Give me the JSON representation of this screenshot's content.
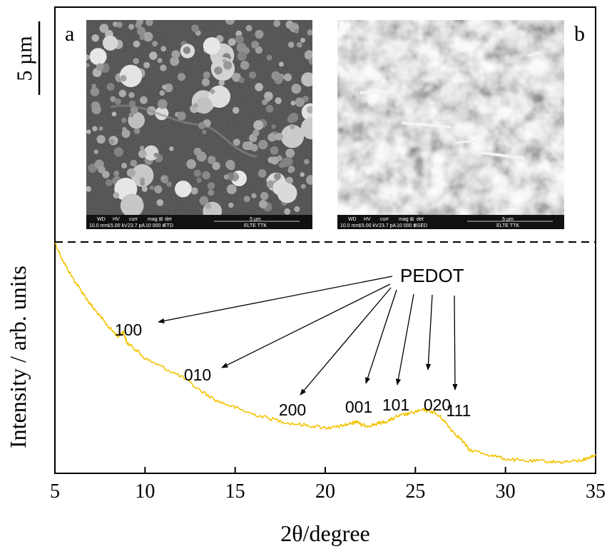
{
  "panels": {
    "a": "a",
    "b": "b"
  },
  "scale_bar_label": "5 µm",
  "sem_info": {
    "a": {
      "headers": [
        "WD",
        "HV",
        "curr",
        "mag ⊞",
        "det"
      ],
      "values": [
        "10.0 mm",
        "15.00 kV",
        "23.7 pA",
        "10 000 x",
        "ETD"
      ],
      "scale": "5 µm",
      "org": "ELTE TTK"
    },
    "b": {
      "headers": [
        "WD",
        "HV",
        "curr",
        "mag ⊞",
        "det"
      ],
      "values": [
        "10.0 mm",
        "15.00 kV",
        "23.7 pA",
        "10 000 x",
        "BSED"
      ],
      "scale": "5 µm",
      "org": "ELTE TTK"
    }
  },
  "chart_data": {
    "type": "line",
    "xlabel": "2θ/degree",
    "ylabel": "Intensity / arb. units",
    "xlim": [
      5,
      35
    ],
    "ylim": [
      0,
      1
    ],
    "xticks": [
      5,
      10,
      15,
      20,
      25,
      30,
      35
    ],
    "y_ticks_labeled": false,
    "color": "#f2c200",
    "series": [
      {
        "x": [
          5,
          5.5,
          6,
          6.5,
          7,
          7.5,
          8,
          8.5,
          8.8,
          9,
          9.5,
          10,
          11,
          12,
          13,
          14,
          15,
          16,
          17,
          18,
          19,
          20,
          20.5,
          21,
          21.5,
          21.8,
          22,
          22.5,
          23,
          23.5,
          24,
          24.5,
          25,
          25.5,
          26,
          26.5,
          27,
          27.5,
          28,
          29,
          30,
          31,
          32,
          33,
          34,
          34.5,
          35
        ],
        "y": [
          1.0,
          0.91,
          0.84,
          0.78,
          0.72,
          0.67,
          0.62,
          0.58,
          0.6,
          0.55,
          0.52,
          0.48,
          0.44,
          0.4,
          0.34,
          0.29,
          0.26,
          0.23,
          0.21,
          0.19,
          0.18,
          0.17,
          0.17,
          0.18,
          0.19,
          0.2,
          0.18,
          0.18,
          0.19,
          0.2,
          0.22,
          0.23,
          0.24,
          0.25,
          0.24,
          0.21,
          0.16,
          0.12,
          0.07,
          0.05,
          0.03,
          0.02,
          0.02,
          0.015,
          0.02,
          0.03,
          0.05
        ]
      }
    ],
    "annotation_title": "PEDOT",
    "annotations": [
      {
        "label": "100",
        "x": 8.0,
        "y": 0.6
      },
      {
        "label": "010",
        "x": 10.0,
        "y": 0.42
      },
      {
        "label": "200",
        "x": 17.8,
        "y": 0.21
      },
      {
        "label": "001",
        "x": 22.1,
        "y": 0.24
      },
      {
        "label": "101",
        "x": 24.3,
        "y": 0.25
      },
      {
        "label": "020",
        "x": 25.8,
        "y": 0.29
      },
      {
        "label": "111",
        "x": 27.3,
        "y": 0.21
      }
    ],
    "separator": "dashed",
    "grid": false
  }
}
